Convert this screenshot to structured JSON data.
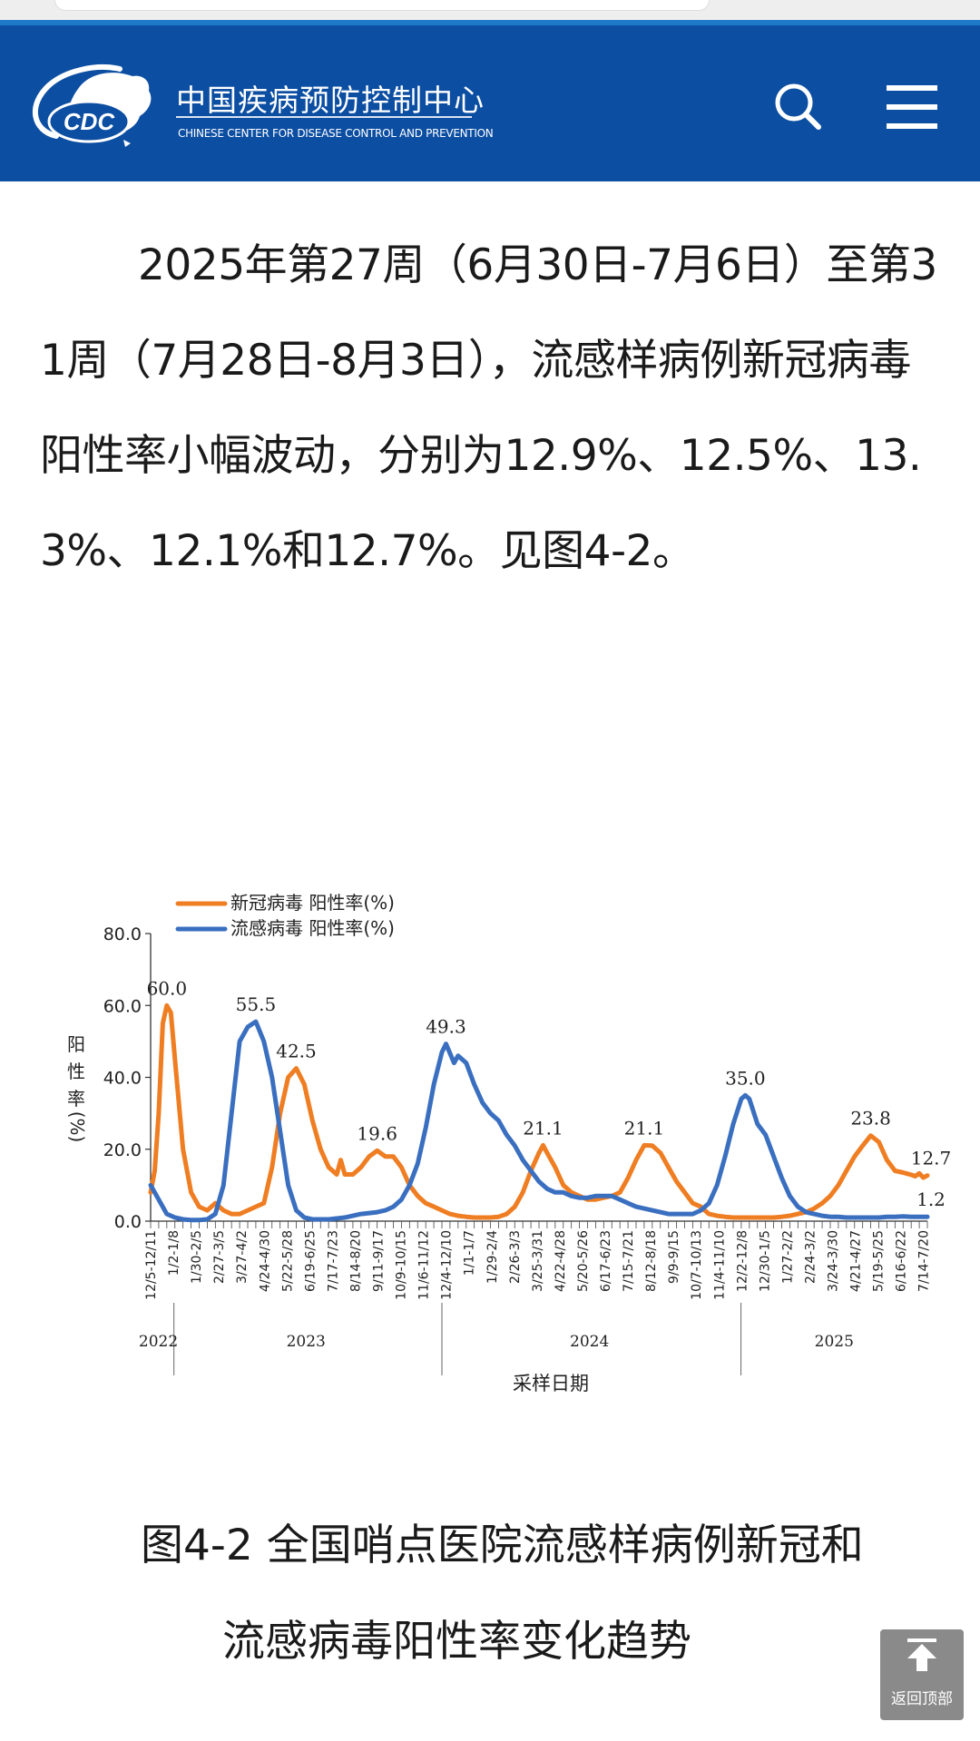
{
  "site": {
    "logo_text": "CDC",
    "name_cn": "中国疾病预防控制中心",
    "name_en": "CHINESE CENTER FOR DISEASE CONTROL AND PREVENTION",
    "search_icon": "search-icon",
    "menu_icon": "hamburger-menu-icon"
  },
  "article": {
    "paragraph": "2025年第27周（6月30日-7月6日）至第31周（7月28日-8月3日），流感样病例新冠病毒阳性率小幅波动，分别为12.9%、12.5%、13.3%、12.1%和12.7%。见图4-2。"
  },
  "caption": {
    "line1": "图4-2 全国哨点医院流感样病例新冠和",
    "line2": "流感病毒阳性率变化趋势"
  },
  "back_to_top": {
    "label": "返回顶部",
    "icon": "arrow-up-icon"
  },
  "chart_data": {
    "type": "line",
    "title": "",
    "xlabel": "采样日期",
    "ylabel": "阳性率(%)",
    "ylim": [
      0,
      80
    ],
    "yticks": [
      "0.0",
      "20.0",
      "40.0",
      "60.0",
      "80.0"
    ],
    "x_tick_labels": [
      "12/5-12/11",
      "1/2-1/8",
      "1/30-2/5",
      "2/27-3/5",
      "3/27-4/2",
      "4/24-4/30",
      "5/22-5/28",
      "6/19-6/25",
      "7/17-7/23",
      "8/14-8/20",
      "9/11-9/17",
      "10/9-10/15",
      "11/6-11/12",
      "12/4-12/10",
      "1/1-1/7",
      "1/29-2/4",
      "2/26-3/3",
      "3/25-3/31",
      "4/22-4/28",
      "5/20-5/26",
      "6/17-6/23",
      "7/15-7/21",
      "8/12-8/18",
      "9/9-9/15",
      "10/7-10/13",
      "11/4-11/10",
      "12/2-12/8",
      "12/30-1/5",
      "1/27-2/2",
      "2/24-3/2",
      "3/24-3/30",
      "4/21-4/27",
      "5/19-5/25",
      "6/16-6/22",
      "7/14-7/20"
    ],
    "year_labels": [
      "2022",
      "2023",
      "2024",
      "2025"
    ],
    "legend_position": "top-left",
    "grid": false,
    "series": [
      {
        "name": "新冠病毒 阳性率(%)",
        "color": "#ef7d22",
        "points": [
          [
            0,
            8
          ],
          [
            1,
            14
          ],
          [
            2,
            30
          ],
          [
            3,
            55
          ],
          [
            4,
            60
          ],
          [
            5,
            58
          ],
          [
            6,
            45
          ],
          [
            8,
            20
          ],
          [
            10,
            8
          ],
          [
            12,
            4
          ],
          [
            14,
            3
          ],
          [
            16,
            5
          ],
          [
            18,
            3
          ],
          [
            20,
            2
          ],
          [
            22,
            2
          ],
          [
            24,
            3
          ],
          [
            26,
            4
          ],
          [
            28,
            5
          ],
          [
            30,
            15
          ],
          [
            32,
            30
          ],
          [
            34,
            40
          ],
          [
            36,
            42.5
          ],
          [
            38,
            38
          ],
          [
            40,
            28
          ],
          [
            42,
            20
          ],
          [
            44,
            15
          ],
          [
            46,
            13
          ],
          [
            47,
            17
          ],
          [
            48,
            13
          ],
          [
            50,
            13
          ],
          [
            52,
            15
          ],
          [
            54,
            18
          ],
          [
            56,
            19.6
          ],
          [
            58,
            18
          ],
          [
            60,
            18
          ],
          [
            62,
            15
          ],
          [
            64,
            10
          ],
          [
            66,
            7
          ],
          [
            68,
            5
          ],
          [
            70,
            4
          ],
          [
            72,
            3
          ],
          [
            74,
            2
          ],
          [
            76,
            1.5
          ],
          [
            78,
            1.2
          ],
          [
            80,
            1
          ],
          [
            82,
            1
          ],
          [
            84,
            1
          ],
          [
            86,
            1.2
          ],
          [
            88,
            2
          ],
          [
            90,
            4
          ],
          [
            92,
            8
          ],
          [
            94,
            14
          ],
          [
            96,
            19
          ],
          [
            97,
            21.1
          ],
          [
            98,
            19
          ],
          [
            100,
            15
          ],
          [
            102,
            10
          ],
          [
            104,
            8
          ],
          [
            106,
            7
          ],
          [
            108,
            6
          ],
          [
            110,
            6
          ],
          [
            112,
            6.5
          ],
          [
            114,
            7
          ],
          [
            116,
            8
          ],
          [
            118,
            12
          ],
          [
            120,
            17
          ],
          [
            122,
            21.1
          ],
          [
            124,
            21
          ],
          [
            126,
            19
          ],
          [
            128,
            15
          ],
          [
            130,
            11
          ],
          [
            132,
            8
          ],
          [
            134,
            5
          ],
          [
            136,
            4
          ],
          [
            138,
            2
          ],
          [
            140,
            1.5
          ],
          [
            142,
            1.2
          ],
          [
            144,
            1
          ],
          [
            146,
            1
          ],
          [
            148,
            1
          ],
          [
            150,
            1
          ],
          [
            152,
            1
          ],
          [
            154,
            1
          ],
          [
            156,
            1.2
          ],
          [
            158,
            1.5
          ],
          [
            160,
            2
          ],
          [
            162,
            2.5
          ],
          [
            164,
            3.5
          ],
          [
            166,
            5
          ],
          [
            168,
            7
          ],
          [
            170,
            10
          ],
          [
            172,
            14
          ],
          [
            174,
            18
          ],
          [
            176,
            21
          ],
          [
            178,
            23.8
          ],
          [
            180,
            22
          ],
          [
            182,
            17
          ],
          [
            184,
            14
          ],
          [
            186,
            13.5
          ],
          [
            188,
            12.9
          ],
          [
            189,
            12.5
          ],
          [
            190,
            13.3
          ],
          [
            191,
            12.1
          ],
          [
            192,
            12.7
          ]
        ],
        "peak_labels": [
          {
            "x": 4,
            "y": 60,
            "text": "60.0"
          },
          {
            "x": 36,
            "y": 42.5,
            "text": "42.5"
          },
          {
            "x": 56,
            "y": 19.6,
            "text": "19.6"
          },
          {
            "x": 97,
            "y": 21.1,
            "text": "21.1"
          },
          {
            "x": 122,
            "y": 21.1,
            "text": "21.1"
          },
          {
            "x": 178,
            "y": 23.8,
            "text": "23.8"
          },
          {
            "x": 192,
            "y": 12.7,
            "text": "12.7"
          }
        ]
      },
      {
        "name": "流感病毒 阳性率(%)",
        "color": "#3a6fc0",
        "points": [
          [
            0,
            10
          ],
          [
            2,
            6
          ],
          [
            4,
            2
          ],
          [
            6,
            1
          ],
          [
            8,
            0.5
          ],
          [
            10,
            0.3
          ],
          [
            12,
            0.3
          ],
          [
            14,
            0.5
          ],
          [
            16,
            2
          ],
          [
            18,
            10
          ],
          [
            20,
            30
          ],
          [
            22,
            50
          ],
          [
            24,
            54
          ],
          [
            26,
            55.5
          ],
          [
            28,
            50
          ],
          [
            30,
            40
          ],
          [
            32,
            25
          ],
          [
            34,
            10
          ],
          [
            36,
            3
          ],
          [
            38,
            1
          ],
          [
            40,
            0.5
          ],
          [
            44,
            0.5
          ],
          [
            48,
            1
          ],
          [
            52,
            2
          ],
          [
            56,
            2.5
          ],
          [
            58,
            3
          ],
          [
            60,
            4
          ],
          [
            62,
            6
          ],
          [
            64,
            10
          ],
          [
            66,
            16
          ],
          [
            68,
            26
          ],
          [
            70,
            38
          ],
          [
            72,
            47
          ],
          [
            73,
            49.3
          ],
          [
            75,
            44
          ],
          [
            76,
            46
          ],
          [
            78,
            44
          ],
          [
            80,
            38
          ],
          [
            82,
            33
          ],
          [
            84,
            30
          ],
          [
            86,
            28
          ],
          [
            88,
            24
          ],
          [
            90,
            21
          ],
          [
            92,
            17
          ],
          [
            94,
            14
          ],
          [
            96,
            11
          ],
          [
            98,
            9
          ],
          [
            100,
            8
          ],
          [
            102,
            8
          ],
          [
            104,
            7
          ],
          [
            106,
            6.5
          ],
          [
            108,
            6.5
          ],
          [
            110,
            7
          ],
          [
            112,
            7
          ],
          [
            114,
            7
          ],
          [
            116,
            6
          ],
          [
            118,
            5
          ],
          [
            120,
            4
          ],
          [
            122,
            3.5
          ],
          [
            124,
            3
          ],
          [
            126,
            2.5
          ],
          [
            128,
            2
          ],
          [
            130,
            2
          ],
          [
            132,
            2
          ],
          [
            134,
            2
          ],
          [
            136,
            3
          ],
          [
            138,
            5
          ],
          [
            140,
            10
          ],
          [
            142,
            18
          ],
          [
            144,
            27
          ],
          [
            146,
            34
          ],
          [
            147,
            35
          ],
          [
            148,
            34
          ],
          [
            150,
            27
          ],
          [
            152,
            24
          ],
          [
            154,
            18
          ],
          [
            156,
            12
          ],
          [
            158,
            7
          ],
          [
            160,
            4
          ],
          [
            162,
            2.5
          ],
          [
            164,
            2
          ],
          [
            166,
            1.5
          ],
          [
            168,
            1.2
          ],
          [
            170,
            1.2
          ],
          [
            172,
            1
          ],
          [
            174,
            1
          ],
          [
            176,
            1
          ],
          [
            178,
            1
          ],
          [
            180,
            1
          ],
          [
            182,
            1.2
          ],
          [
            184,
            1.2
          ],
          [
            186,
            1.3
          ],
          [
            188,
            1.2
          ],
          [
            190,
            1.2
          ],
          [
            192,
            1.2
          ]
        ],
        "peak_labels": [
          {
            "x": 26,
            "y": 55.5,
            "text": "55.5"
          },
          {
            "x": 73,
            "y": 49.3,
            "text": "49.3"
          },
          {
            "x": 147,
            "y": 35,
            "text": "35.0"
          },
          {
            "x": 192,
            "y": 1.2,
            "text": "1.2"
          }
        ]
      }
    ]
  }
}
